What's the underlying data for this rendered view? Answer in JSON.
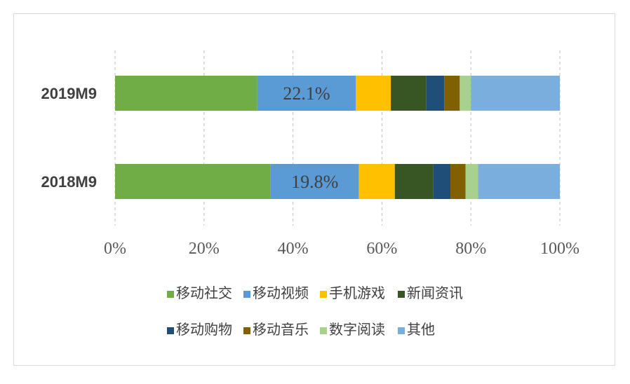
{
  "chart_data": {
    "type": "bar",
    "orientation": "horizontal",
    "stacked": true,
    "percent_stacked": true,
    "categories": [
      "2019M9",
      "2018M9"
    ],
    "series": [
      {
        "name": "移动社交",
        "color": "#70ad47",
        "values": [
          32.0,
          35.0
        ]
      },
      {
        "name": "移动视频",
        "color": "#5b9bd5",
        "values": [
          22.1,
          19.8
        ]
      },
      {
        "name": "手机游戏",
        "color": "#ffc000",
        "values": [
          7.9,
          8.1
        ]
      },
      {
        "name": "新闻资讯",
        "color": "#375623",
        "values": [
          8.0,
          8.6
        ]
      },
      {
        "name": "移动购物",
        "color": "#1f4e79",
        "values": [
          4.0,
          3.9
        ]
      },
      {
        "name": "移动音乐",
        "color": "#806000",
        "values": [
          3.5,
          3.4
        ]
      },
      {
        "name": "数字阅读",
        "color": "#a9d18e",
        "values": [
          2.5,
          2.8
        ]
      },
      {
        "name": "其他",
        "color": "#7aaedc",
        "values": [
          20.0,
          18.4
        ]
      }
    ],
    "data_labels": [
      {
        "category": "2019M9",
        "series": "移动视频",
        "text": "22.1%"
      },
      {
        "category": "2018M9",
        "series": "移动视频",
        "text": "19.8%"
      }
    ],
    "xlim": [
      0,
      100
    ],
    "xticks": [
      "0%",
      "20%",
      "40%",
      "60%",
      "80%",
      "100%"
    ],
    "grid": "vertical dashed",
    "legend": {
      "position": "bottom",
      "rows": [
        [
          "移动社交",
          "移动视频",
          "手机游戏",
          "新闻资讯"
        ],
        [
          "移动购物",
          "移动音乐",
          "数字阅读",
          "其他"
        ]
      ]
    }
  }
}
